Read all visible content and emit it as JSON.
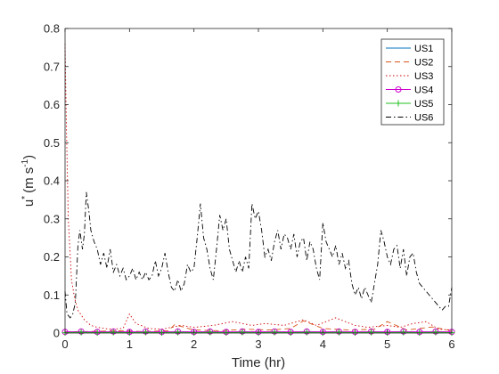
{
  "chart_data": {
    "type": "line",
    "title": "",
    "xlabel": "Time (hr)",
    "ylabel_main": "u",
    "ylabel_super": "*",
    "ylabel_units_pre": "(m s",
    "ylabel_units_exp": "-1",
    "ylabel_units_post": ")",
    "xlim": [
      0,
      6
    ],
    "ylim": [
      0,
      0.8
    ],
    "xticks": [
      0,
      1,
      2,
      3,
      4,
      5,
      6
    ],
    "yticks": [
      0,
      0.1,
      0.2,
      0.3,
      0.4,
      0.5,
      0.6,
      0.7,
      0.8
    ],
    "grid": false,
    "legend_position": "top-right",
    "series": [
      {
        "name": "US1",
        "color": "#0072BD",
        "style": "solid",
        "marker": "none",
        "x": [
          0,
          0.5,
          1,
          1.5,
          2,
          2.5,
          3,
          3.5,
          4,
          4.5,
          5,
          5.5,
          6
        ],
        "values": [
          0.002,
          0.001,
          0.002,
          0.001,
          0.002,
          0.001,
          0.002,
          0.001,
          0.002,
          0.001,
          0.002,
          0.001,
          0.002
        ]
      },
      {
        "name": "US2",
        "color": "#D95319",
        "style": "dashed",
        "marker": "none",
        "x": [
          0,
          0.4,
          0.8,
          1.2,
          1.6,
          1.7,
          2.0,
          2.4,
          2.8,
          3.2,
          3.5,
          3.7,
          4.0,
          4.4,
          4.8,
          5.0,
          5.3,
          5.7,
          6.0
        ],
        "values": [
          0.003,
          0.004,
          0.006,
          0.004,
          0.006,
          0.022,
          0.008,
          0.006,
          0.01,
          0.008,
          0.012,
          0.032,
          0.012,
          0.008,
          0.01,
          0.03,
          0.008,
          0.016,
          0.006
        ]
      },
      {
        "name": "US3",
        "color": "#D00000",
        "style": "dotted",
        "marker": "none",
        "x": [
          0,
          0.02,
          0.05,
          0.1,
          0.15,
          0.2,
          0.3,
          0.4,
          0.5,
          0.7,
          0.9,
          1.0,
          1.1,
          1.3,
          1.5,
          1.8,
          2.0,
          2.3,
          2.6,
          2.9,
          3.1,
          3.4,
          3.7,
          3.9,
          4.2,
          4.5,
          4.7,
          5.0,
          5.2,
          5.4,
          5.6,
          5.8,
          6.0
        ],
        "values": [
          0.76,
          0.55,
          0.3,
          0.14,
          0.09,
          0.06,
          0.035,
          0.02,
          0.015,
          0.01,
          0.012,
          0.05,
          0.025,
          0.012,
          0.01,
          0.02,
          0.015,
          0.02,
          0.03,
          0.02,
          0.025,
          0.02,
          0.035,
          0.02,
          0.04,
          0.02,
          0.015,
          0.02,
          0.015,
          0.025,
          0.03,
          0.01,
          0.008
        ]
      },
      {
        "name": "US4",
        "color": "#D000D0",
        "style": "solid",
        "marker": "circle",
        "x": [
          0,
          0.25,
          0.5,
          0.75,
          1.0,
          1.25,
          1.5,
          1.75,
          2.0,
          2.25,
          2.5,
          2.75,
          3.0,
          3.25,
          3.5,
          3.75,
          4.0,
          4.25,
          4.5,
          4.75,
          5.0,
          5.25,
          5.5,
          5.75,
          6.0
        ],
        "values": [
          0.003,
          0.004,
          0.003,
          0.004,
          0.003,
          0.004,
          0.003,
          0.004,
          0.003,
          0.004,
          0.003,
          0.004,
          0.003,
          0.004,
          0.003,
          0.004,
          0.003,
          0.004,
          0.003,
          0.004,
          0.003,
          0.004,
          0.003,
          0.004,
          0.003
        ]
      },
      {
        "name": "US5",
        "color": "#20C020",
        "style": "solid",
        "marker": "plus",
        "x": [
          0,
          0.25,
          0.5,
          0.75,
          1.0,
          1.25,
          1.5,
          1.75,
          2.0,
          2.25,
          2.5,
          2.75,
          3.0,
          3.25,
          3.5,
          3.75,
          4.0,
          4.25,
          4.5,
          4.75,
          5.0,
          5.25,
          5.5,
          5.75,
          6.0
        ],
        "values": [
          0.001,
          0.002,
          0.001,
          0.002,
          0.001,
          0.002,
          0.001,
          0.002,
          0.001,
          0.002,
          0.001,
          0.002,
          0.001,
          0.002,
          0.001,
          0.002,
          0.001,
          0.002,
          0.001,
          0.002,
          0.001,
          0.002,
          0.001,
          0.002,
          0.001
        ]
      },
      {
        "name": "US6",
        "color": "#000000",
        "style": "dashdot",
        "marker": "none",
        "x": [
          0,
          0.03,
          0.08,
          0.12,
          0.16,
          0.2,
          0.23,
          0.27,
          0.3,
          0.33,
          0.37,
          0.4,
          0.45,
          0.5,
          0.55,
          0.6,
          0.65,
          0.7,
          0.75,
          0.8,
          0.85,
          0.9,
          0.95,
          1.0,
          1.05,
          1.1,
          1.15,
          1.2,
          1.25,
          1.3,
          1.35,
          1.4,
          1.45,
          1.5,
          1.55,
          1.6,
          1.65,
          1.7,
          1.75,
          1.8,
          1.85,
          1.9,
          1.95,
          2.0,
          2.05,
          2.1,
          2.15,
          2.2,
          2.25,
          2.3,
          2.35,
          2.4,
          2.45,
          2.5,
          2.55,
          2.6,
          2.65,
          2.7,
          2.75,
          2.8,
          2.85,
          2.9,
          2.95,
          3.0,
          3.05,
          3.1,
          3.15,
          3.2,
          3.25,
          3.3,
          3.35,
          3.4,
          3.45,
          3.5,
          3.55,
          3.6,
          3.65,
          3.7,
          3.75,
          3.8,
          3.85,
          3.9,
          3.95,
          4.0,
          4.05,
          4.1,
          4.15,
          4.2,
          4.25,
          4.3,
          4.35,
          4.4,
          4.45,
          4.5,
          4.55,
          4.6,
          4.65,
          4.7,
          4.75,
          4.8,
          4.85,
          4.9,
          4.95,
          5.0,
          5.05,
          5.1,
          5.15,
          5.2,
          5.25,
          5.3,
          5.35,
          5.4,
          5.45,
          5.5,
          5.55,
          5.6,
          5.65,
          5.7,
          5.75,
          5.8,
          5.85,
          5.9,
          5.95,
          6.0
        ],
        "values": [
          0.11,
          0.05,
          0.04,
          0.05,
          0.08,
          0.23,
          0.27,
          0.22,
          0.26,
          0.37,
          0.32,
          0.27,
          0.24,
          0.22,
          0.18,
          0.21,
          0.17,
          0.22,
          0.16,
          0.18,
          0.15,
          0.17,
          0.14,
          0.15,
          0.17,
          0.14,
          0.16,
          0.14,
          0.16,
          0.14,
          0.15,
          0.19,
          0.15,
          0.17,
          0.21,
          0.16,
          0.12,
          0.11,
          0.14,
          0.11,
          0.13,
          0.18,
          0.16,
          0.17,
          0.25,
          0.34,
          0.25,
          0.22,
          0.17,
          0.14,
          0.22,
          0.31,
          0.27,
          0.3,
          0.22,
          0.19,
          0.16,
          0.19,
          0.16,
          0.2,
          0.17,
          0.34,
          0.3,
          0.32,
          0.27,
          0.2,
          0.22,
          0.19,
          0.24,
          0.27,
          0.22,
          0.26,
          0.25,
          0.22,
          0.26,
          0.2,
          0.24,
          0.25,
          0.19,
          0.24,
          0.22,
          0.17,
          0.14,
          0.29,
          0.24,
          0.22,
          0.2,
          0.23,
          0.18,
          0.21,
          0.17,
          0.19,
          0.13,
          0.1,
          0.12,
          0.09,
          0.12,
          0.1,
          0.08,
          0.13,
          0.18,
          0.27,
          0.24,
          0.2,
          0.18,
          0.22,
          0.23,
          0.17,
          0.22,
          0.15,
          0.2,
          0.21,
          0.16,
          0.13,
          0.12,
          0.11,
          0.1,
          0.09,
          0.08,
          0.07,
          0.06,
          0.07,
          0.07,
          0.12
        ]
      }
    ]
  }
}
